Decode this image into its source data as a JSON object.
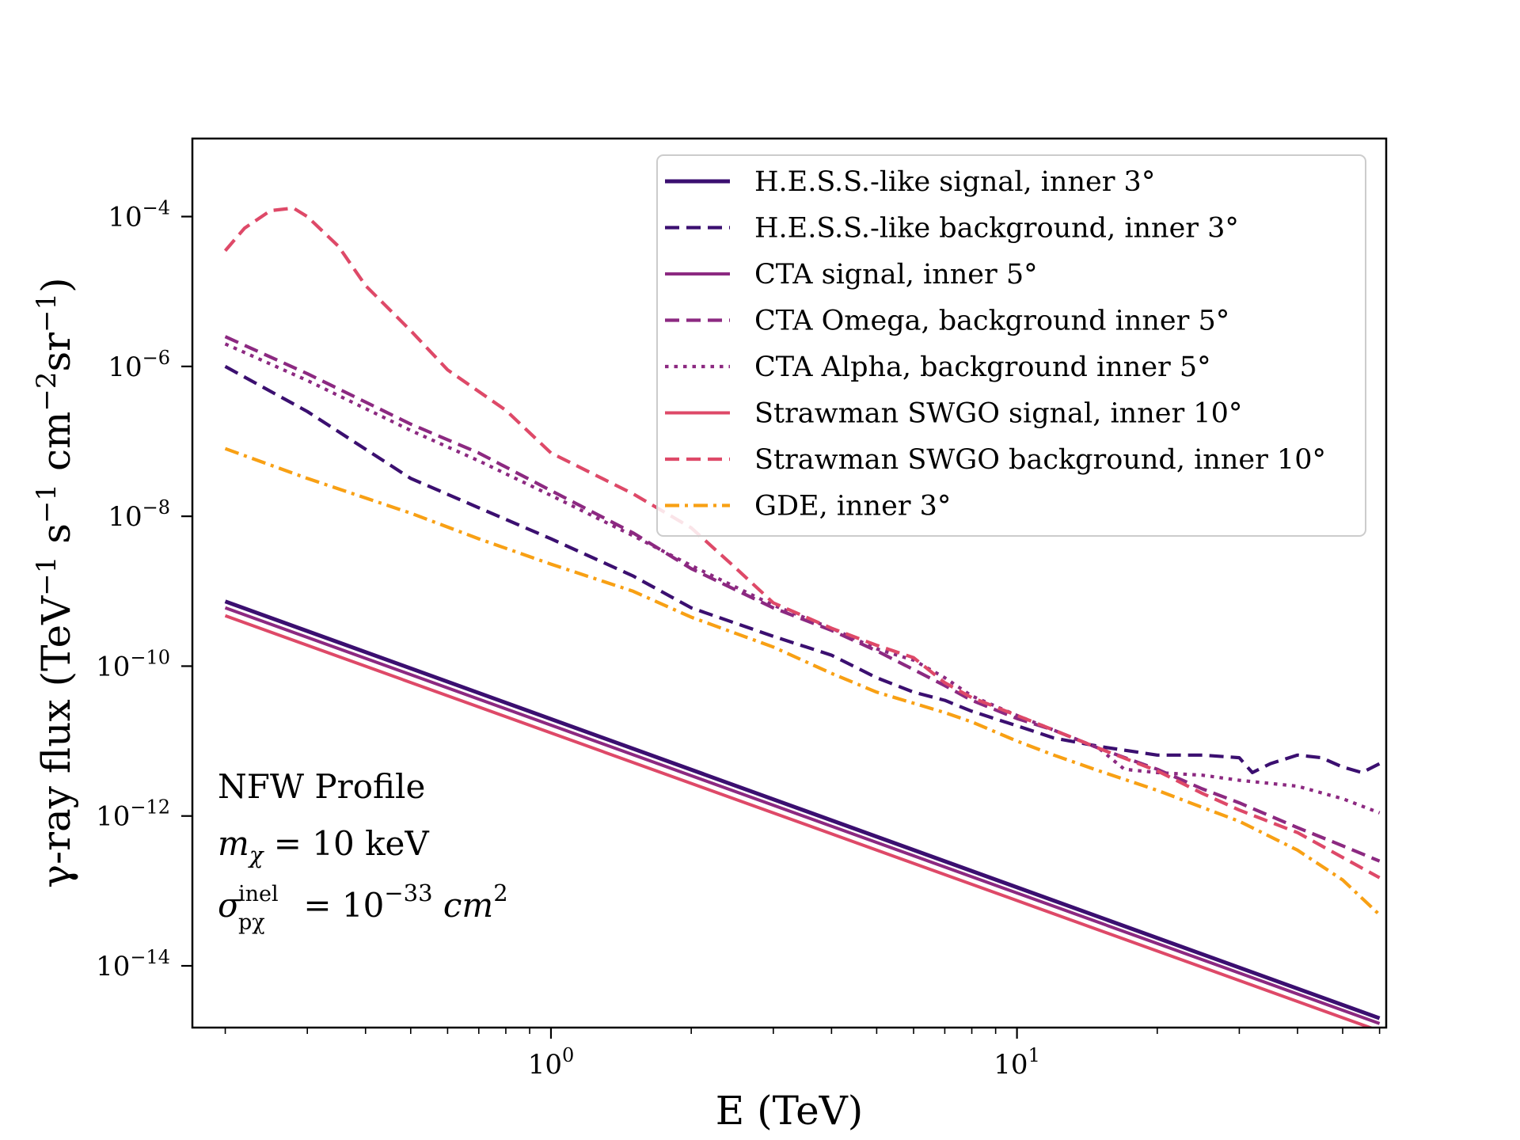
{
  "chart_data": {
    "type": "line",
    "xscale": "log",
    "yscale": "log",
    "xlim": [
      0.17,
      62
    ],
    "ylim": [
      1.5e-15,
      0.0011
    ],
    "xlabel": "E (TeV)",
    "ylabel": {
      "prefix": "γ-ray flux (TeV",
      "exp1": "−1",
      "mid1": " s",
      "exp2": "−1",
      "mid2": " cm",
      "exp3": "−2",
      "mid3": "sr",
      "exp4": "−1",
      "suffix": ")"
    },
    "xticks": [
      {
        "value": 1,
        "base": "10",
        "exp": "0"
      },
      {
        "value": 10,
        "base": "10",
        "exp": "1"
      }
    ],
    "yticks": [
      {
        "value": 0.0001,
        "base": "10",
        "exp": "−4"
      },
      {
        "value": 1e-06,
        "base": "10",
        "exp": "−6"
      },
      {
        "value": 1e-08,
        "base": "10",
        "exp": "−8"
      },
      {
        "value": 1e-10,
        "base": "10",
        "exp": "−10"
      },
      {
        "value": 1e-12,
        "base": "10",
        "exp": "−12"
      },
      {
        "value": 1e-14,
        "base": "10",
        "exp": "−14"
      }
    ],
    "annotation": {
      "line1": "NFW Profile",
      "mass": {
        "sym": "m",
        "sub": "χ",
        "rest": " = 10 keV"
      },
      "sigma": {
        "sym": "σ",
        "sup": "inel",
        "sub": "pχ",
        "eq": " = 10",
        "exp": "−33",
        "unit": " cm",
        "unit_exp": "2"
      }
    },
    "legend_position": "top-right",
    "series": [
      {
        "name": "H.E.S.S.-like signal, inner 3°",
        "color": "#3b0f70",
        "style": "solid",
        "width": 5,
        "x": [
          0.2,
          60
        ],
        "y": [
          7.3e-10,
          2e-15
        ]
      },
      {
        "name": "H.E.S.S.-like background, inner 3°",
        "color": "#3b0f70",
        "style": "dashed",
        "width": 4.2,
        "x": [
          0.2,
          0.3,
          0.5,
          0.7,
          1.0,
          1.5,
          2.0,
          3.0,
          4.0,
          5.0,
          6.0,
          7.0,
          8.0,
          10.0,
          12.0,
          15.0,
          20.0,
          25.0,
          30.0,
          32.0,
          35.0,
          40.0,
          45.0,
          50.0,
          55.0,
          60.0
        ],
        "y": [
          1e-06,
          2.5e-07,
          3.2e-08,
          1.3e-08,
          5e-09,
          1.6e-09,
          6e-10,
          2.5e-10,
          1.4e-10,
          7e-11,
          4.5e-11,
          3.5e-11,
          2.5e-11,
          1.6e-11,
          1.1e-11,
          8.5e-12,
          6.5e-12,
          6.5e-12,
          6e-12,
          3.8e-12,
          5e-12,
          6.5e-12,
          6e-12,
          4.5e-12,
          3.8e-12,
          5e-12
        ]
      },
      {
        "name": "CTA signal, inner 5°",
        "color": "#8c2981",
        "style": "solid",
        "width": 4,
        "x": [
          0.2,
          60
        ],
        "y": [
          6e-10,
          1.7e-15
        ]
      },
      {
        "name": "CTA Omega, background inner 5°",
        "color": "#8c2981",
        "style": "dashed",
        "width": 4.2,
        "x": [
          0.2,
          0.3,
          0.5,
          0.7,
          1.0,
          1.5,
          2.0,
          3.0,
          4.0,
          5.0,
          6.0,
          7.0,
          8.0,
          10.0,
          12.0,
          15.0,
          20.0,
          25.0,
          30.0,
          40.0,
          50.0,
          60.0
        ],
        "y": [
          2.5e-06,
          8e-07,
          1.7e-07,
          7e-08,
          2.2e-08,
          6e-09,
          2e-09,
          6e-10,
          3e-10,
          1.6e-10,
          9e-11,
          5.5e-11,
          3.5e-11,
          2e-11,
          1.4e-11,
          8e-12,
          4.2e-12,
          2.3e-12,
          1.5e-12,
          7e-13,
          4e-13,
          2.5e-13
        ]
      },
      {
        "name": "CTA Alpha, background inner 5°",
        "color": "#8c2981",
        "style": "dotted",
        "width": 4.2,
        "x": [
          0.2,
          0.3,
          0.5,
          0.7,
          1.0,
          1.5,
          2.0,
          3.0,
          4.0,
          5.0,
          6.0,
          7.0,
          8.0,
          10.0,
          12.0,
          15.0,
          17.0,
          20.0,
          25.0,
          30.0,
          40.0,
          50.0,
          60.0
        ],
        "y": [
          2e-06,
          6.5e-07,
          1.4e-07,
          5.5e-08,
          1.9e-08,
          5.5e-09,
          2.2e-09,
          6.5e-10,
          3.2e-10,
          1.7e-10,
          1.2e-10,
          7e-11,
          4e-11,
          2.2e-11,
          1.4e-11,
          8e-12,
          4.2e-12,
          3.8e-12,
          3.5e-12,
          3e-12,
          2.5e-12,
          1.7e-12,
          1.1e-12
        ]
      },
      {
        "name": "Strawman SWGO signal, inner 10°",
        "color": "#de4968",
        "style": "solid",
        "width": 4,
        "x": [
          0.2,
          60
        ],
        "y": [
          4.7e-10,
          1.35e-15
        ]
      },
      {
        "name": "Strawman SWGO background, inner 10°",
        "color": "#de4968",
        "style": "dashed",
        "width": 4.2,
        "x": [
          0.2,
          0.22,
          0.25,
          0.28,
          0.3,
          0.35,
          0.4,
          0.5,
          0.6,
          0.8,
          1.0,
          1.5,
          2.0,
          2.5,
          3.0,
          4.0,
          5.0,
          6.0,
          7.0,
          8.0,
          10.0,
          12.0,
          15.0,
          20.0,
          25.0,
          30.0,
          40.0,
          50.0,
          60.0
        ],
        "y": [
          3.5e-05,
          7e-05,
          0.00012,
          0.00013,
          0.0001,
          4e-05,
          1.2e-05,
          3e-06,
          9e-07,
          2.6e-07,
          7e-08,
          2e-08,
          7e-09,
          2e-09,
          7e-10,
          3.2e-10,
          1.9e-10,
          1.3e-10,
          6e-11,
          3.8e-11,
          2.2e-11,
          1.4e-11,
          8e-12,
          4e-12,
          2e-12,
          1.2e-12,
          6e-13,
          2.8e-13,
          1.5e-13
        ]
      },
      {
        "name": "GDE, inner 3°",
        "color": "#f8a014",
        "style": "dashdot",
        "width": 4.2,
        "x": [
          0.2,
          0.3,
          0.5,
          0.7,
          1.0,
          1.5,
          2.0,
          3.0,
          4.0,
          5.0,
          6.0,
          7.0,
          8.0,
          10.0,
          12.0,
          15.0,
          20.0,
          25.0,
          30.0,
          40.0,
          50.0,
          60.0
        ],
        "y": [
          8e-08,
          3.2e-08,
          1.1e-08,
          5e-09,
          2.3e-09,
          1e-09,
          4.5e-10,
          1.8e-10,
          8e-11,
          4.5e-11,
          3.2e-11,
          2.4e-11,
          1.8e-11,
          1e-11,
          6.5e-12,
          4e-12,
          2.2e-12,
          1.3e-12,
          8.5e-13,
          3.5e-13,
          1.4e-13,
          4.8e-14
        ]
      }
    ]
  }
}
